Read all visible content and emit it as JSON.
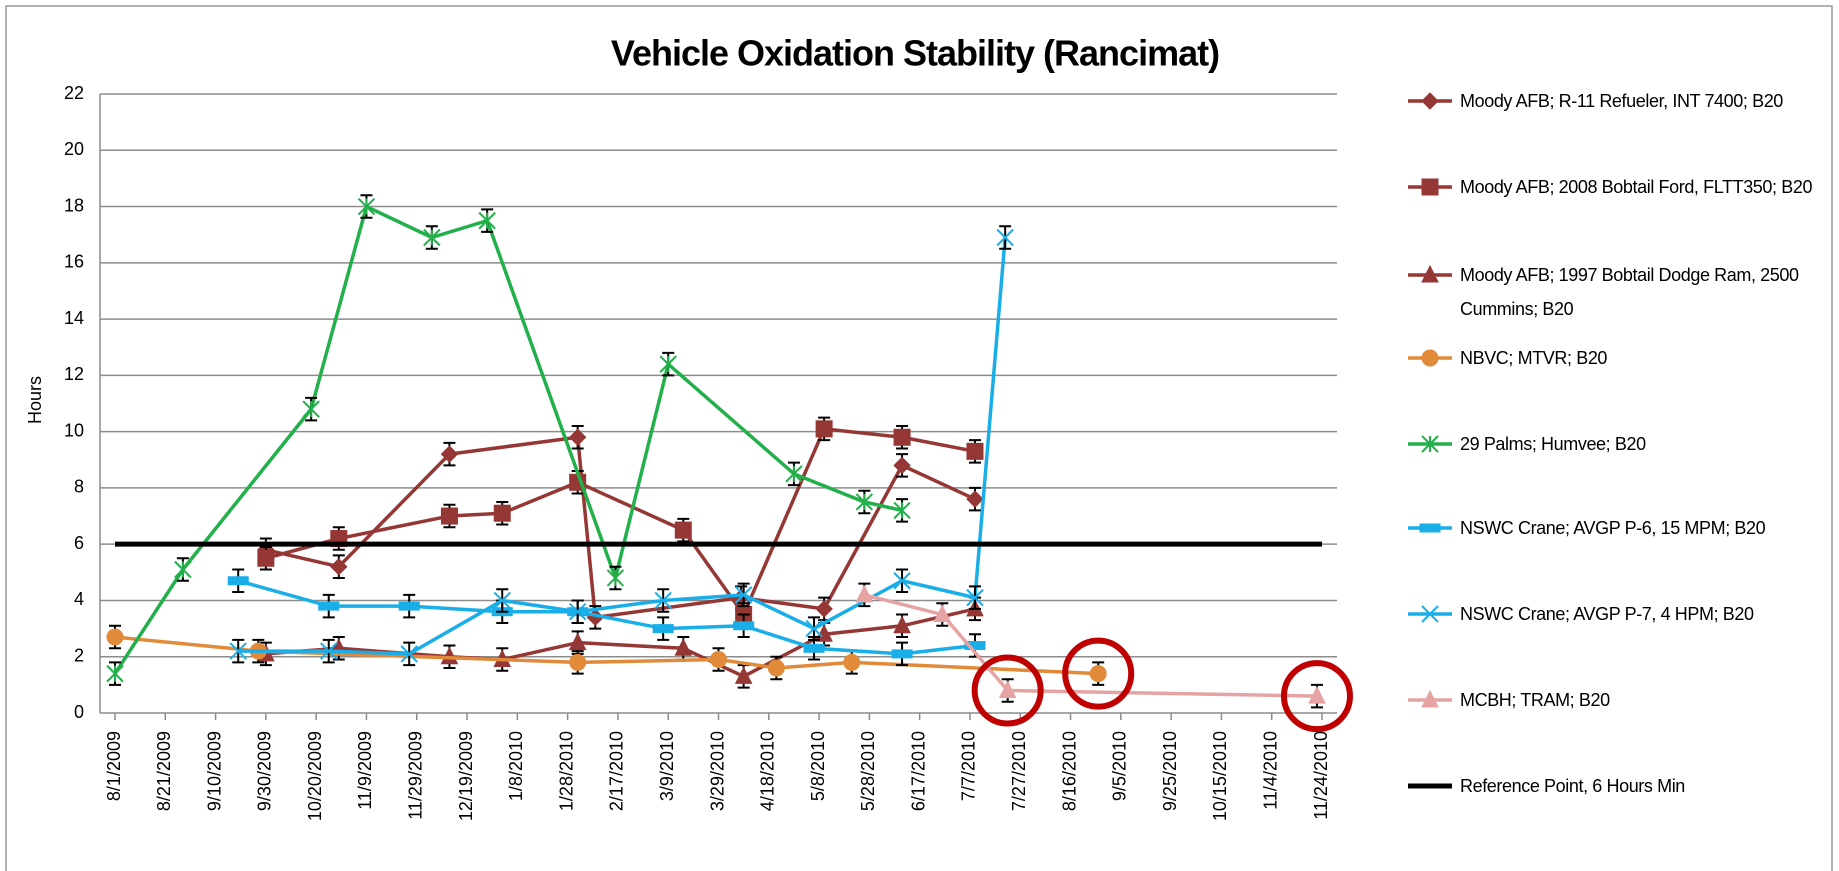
{
  "chart_data": {
    "type": "line",
    "title": "Vehicle Oxidation Stability (Rancimat)",
    "y_label": "Hours",
    "xlim": [
      "8/1/2009",
      "11/24/2010"
    ],
    "xticks": [
      "8/1/2009",
      "8/21/2009",
      "9/10/2009",
      "9/30/2009",
      "10/20/2009",
      "11/9/2009",
      "11/29/2009",
      "12/19/2009",
      "1/8/2010",
      "1/28/2010",
      "2/17/2010",
      "3/9/2010",
      "3/29/2010",
      "4/18/2010",
      "5/8/2010",
      "5/28/2010",
      "6/17/2010",
      "7/7/2010",
      "7/27/2010",
      "8/16/2010",
      "9/5/2010",
      "9/25/2010",
      "10/15/2010",
      "11/4/2010",
      "11/24/2010"
    ],
    "ylim": [
      0,
      22
    ],
    "yticks": [
      0,
      2,
      4,
      6,
      8,
      10,
      12,
      14,
      16,
      18,
      20,
      22
    ],
    "grid": true,
    "error_bar": 0.4,
    "series": [
      {
        "name": "Moody AFB;  R-11 Refueler, INT 7400; B20",
        "color": "#953735",
        "marker": "diamond",
        "x": [
          "9/30/2009",
          "10/29/2009",
          "12/12/2009",
          "2/1/2010",
          "2/8/2010",
          "4/7/2010",
          "5/10/2010",
          "6/10/2010",
          "7/9/2010"
        ],
        "values": [
          5.8,
          5.2,
          9.2,
          9.8,
          3.4,
          4.1,
          3.7,
          8.8,
          7.6
        ]
      },
      {
        "name": "Moody AFB;  2008 Bobtail Ford, FLTT350; B20",
        "color": "#953735",
        "marker": "square",
        "x": [
          "9/30/2009",
          "10/29/2009",
          "12/12/2009",
          "1/2/2010",
          "2/1/2010",
          "3/15/2010",
          "4/8/2010",
          "5/10/2010",
          "6/10/2010",
          "7/9/2010"
        ],
        "values": [
          5.5,
          6.2,
          7.0,
          7.1,
          8.2,
          6.5,
          3.5,
          10.1,
          9.8,
          9.3
        ]
      },
      {
        "name": "Moody AFB;  1997 Bobtail Dodge Ram, 2500 Cummins; B20",
        "color": "#953735",
        "marker": "triangle",
        "x": [
          "9/30/2009",
          "10/29/2009",
          "12/12/2009",
          "1/2/2010",
          "2/1/2010",
          "3/15/2010",
          "4/8/2010",
          "5/10/2010",
          "6/10/2010",
          "7/9/2010"
        ],
        "values": [
          2.1,
          2.3,
          2.0,
          1.9,
          2.5,
          2.3,
          1.3,
          2.8,
          3.1,
          3.7
        ]
      },
      {
        "name": "NBVC;  MTVR;  B20",
        "color": "#e08a3a",
        "marker": "circle",
        "x": [
          "8/1/2009",
          "9/27/2009",
          "2/1/2010",
          "3/29/2010",
          "4/21/2010",
          "5/21/2010",
          "8/27/2010"
        ],
        "values": [
          2.7,
          2.2,
          1.8,
          1.9,
          1.6,
          1.8,
          1.4
        ]
      },
      {
        "name": "29 Palms; Humvee; B20",
        "color": "#22b04b",
        "marker": "star",
        "x": [
          "8/1/2009",
          "8/28/2009",
          "10/18/2009",
          "11/9/2009",
          "12/5/2009",
          "12/27/2009",
          "2/16/2010",
          "3/9/2010",
          "4/28/2010",
          "5/26/2010",
          "6/10/2010"
        ],
        "values": [
          1.4,
          5.1,
          10.8,
          18.0,
          16.9,
          17.5,
          4.8,
          12.4,
          8.5,
          7.5,
          7.2
        ]
      },
      {
        "name": "NSWC Crane; AVGP  P-6, 15 MPM;  B20",
        "color": "#1aaee8",
        "marker": "dash",
        "x": [
          "9/19/2009",
          "10/25/2009",
          "11/26/2009",
          "1/2/2010",
          "2/1/2010",
          "3/7/2010",
          "4/8/2010",
          "5/6/2010",
          "6/10/2010",
          "7/9/2010"
        ],
        "values": [
          4.7,
          3.8,
          3.8,
          3.6,
          3.6,
          3.0,
          3.1,
          2.3,
          2.1,
          2.4
        ]
      },
      {
        "name": "NSWC Crane; AVGP  P-7, 4 HPM; B20",
        "color": "#1aaee8",
        "marker": "x",
        "x": [
          "9/19/2009",
          "10/25/2009",
          "11/26/2009",
          "1/2/2010",
          "2/1/2010",
          "3/7/2010",
          "4/8/2010",
          "5/6/2010",
          "6/10/2010",
          "7/9/2010",
          "7/21/2010"
        ],
        "values": [
          2.2,
          2.2,
          2.1,
          4.0,
          3.6,
          4.0,
          4.2,
          3.0,
          4.7,
          4.1,
          16.9
        ]
      },
      {
        "name": "MCBH;  TRAM;  B20",
        "color": "#e6a3a3",
        "marker": "triangle",
        "x": [
          "5/26/2010",
          "6/26/2010",
          "7/22/2010",
          "11/22/2010"
        ],
        "values": [
          4.2,
          3.5,
          0.8,
          0.6
        ]
      },
      {
        "name": "Reference Point, 6 Hours Min",
        "color": "#000000",
        "marker": "none",
        "width": 5,
        "x": [
          "8/1/2009",
          "11/24/2010"
        ],
        "values": [
          6,
          6
        ]
      }
    ]
  }
}
